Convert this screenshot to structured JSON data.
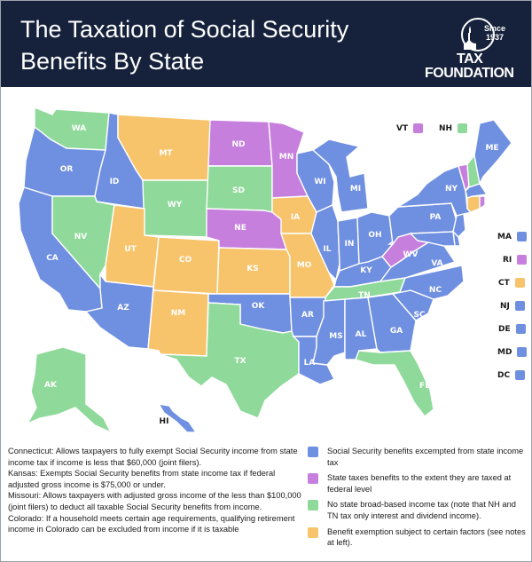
{
  "header": {
    "title_line1": "The Taxation of Social Security",
    "title_line2": "Benefits By State",
    "logo_since": "Since 1937",
    "logo_line1": "TAX",
    "logo_line2": "FOUNDATION"
  },
  "colors": {
    "exempt": "#6f8fe0",
    "taxed_federal": "#c77fdd",
    "no_income_tax": "#8fd99a",
    "conditional": "#f7c46c",
    "header_bg": "#16223c"
  },
  "states": {
    "WA": "WA",
    "OR": "OR",
    "CA": "CA",
    "ID": "ID",
    "NV": "NV",
    "MT": "MT",
    "WY": "WY",
    "UT": "UT",
    "AZ": "AZ",
    "CO": "CO",
    "NM": "NM",
    "ND": "ND",
    "SD": "SD",
    "NE": "NE",
    "KS": "KS",
    "OK": "OK",
    "TX": "TX",
    "MN": "MN",
    "IA": "IA",
    "MO": "MO",
    "AR": "AR",
    "LA": "LA",
    "WI": "WI",
    "IL": "IL",
    "MI": "MI",
    "IN": "IN",
    "OH": "OH",
    "KY": "KY",
    "TN": "TN",
    "MS": "MS",
    "AL": "AL",
    "GA": "GA",
    "FL": "FL",
    "SC": "SC",
    "NC": "NC",
    "VA": "VA",
    "WV": "WV",
    "PA": "PA",
    "NY": "NY",
    "ME": "ME",
    "AK": "AK",
    "HI": "HI"
  },
  "small_states": {
    "VT": "VT",
    "NH": "NH",
    "MA": "MA",
    "RI": "RI",
    "CT": "CT",
    "NJ": "NJ",
    "DE": "DE",
    "MD": "MD",
    "DC": "DC"
  },
  "notes": {
    "ct": "Connecticut: Allows taxpayers to fully exempt Social Security income from state income tax if income is less that $60,000 (joint filers).",
    "ks": "Kansas: Exempts Social Security benefits from state income tax if federal adjusted gross income is $75,000 or under.",
    "mo": "Missouri: Allows taxpayers with adjusted gross income of the less than $100,000 (joint filers) to deduct all taxable Social Security benefits from income.",
    "co": "Colorado: If a household meets certain age requirements, qualifying retirement income in Colorado can be excluded from income if it is taxable"
  },
  "legend": {
    "exempt": "Social Security benefits excempted from state income tax",
    "taxed_federal": "State taxes benefits to the extent they are taxed at federal level",
    "no_income_tax": "No state broad-based income tax (note that NH and TN tax only interest and dividend income).",
    "conditional": "Benefit exemption subject to certain factors (see notes at left)."
  }
}
